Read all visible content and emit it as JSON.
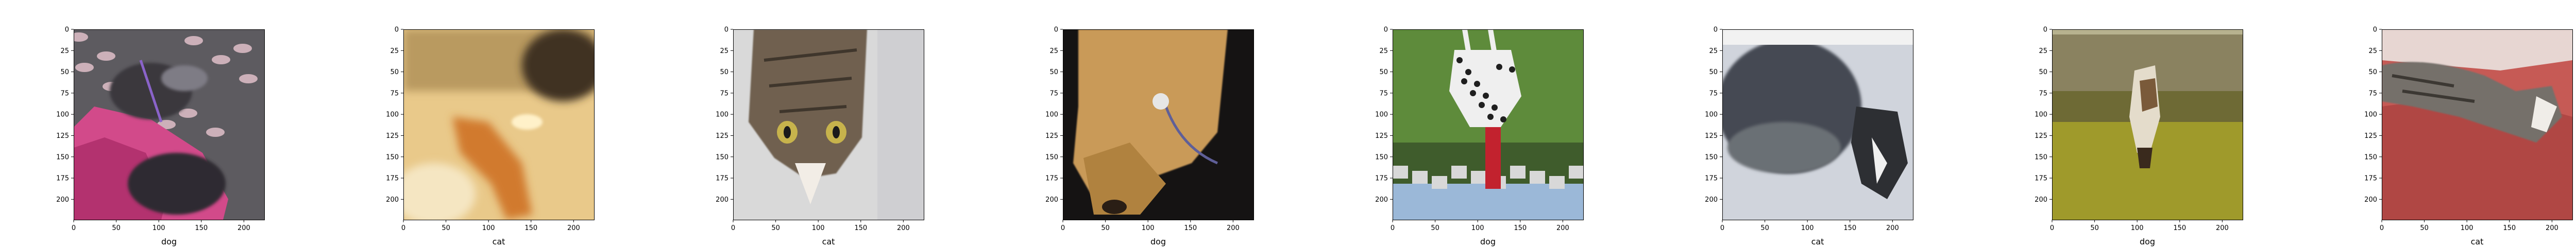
{
  "figure": {
    "panels": [
      {
        "xlabel": "dog",
        "scene": "dog-pink-pillow"
      },
      {
        "xlabel": "cat",
        "scene": "cat-blurry-orange"
      },
      {
        "xlabel": "cat",
        "scene": "tabby-cat-upside-down"
      },
      {
        "xlabel": "dog",
        "scene": "dog-tan-upside-down"
      },
      {
        "xlabel": "dog",
        "scene": "dalmatian-upside-down-field"
      },
      {
        "xlabel": "cat",
        "scene": "cat-black-white-upside-down"
      },
      {
        "xlabel": "dog",
        "scene": "dog-small-olive-background"
      },
      {
        "xlabel": "cat",
        "scene": "tabby-cat-red-blanket"
      }
    ],
    "axes": {
      "xlim": [
        0,
        224
      ],
      "ylim": [
        224,
        0
      ],
      "xticks": [
        0,
        50,
        100,
        150,
        200
      ],
      "yticks": [
        0,
        25,
        50,
        75,
        100,
        125,
        150,
        175,
        200
      ]
    }
  }
}
